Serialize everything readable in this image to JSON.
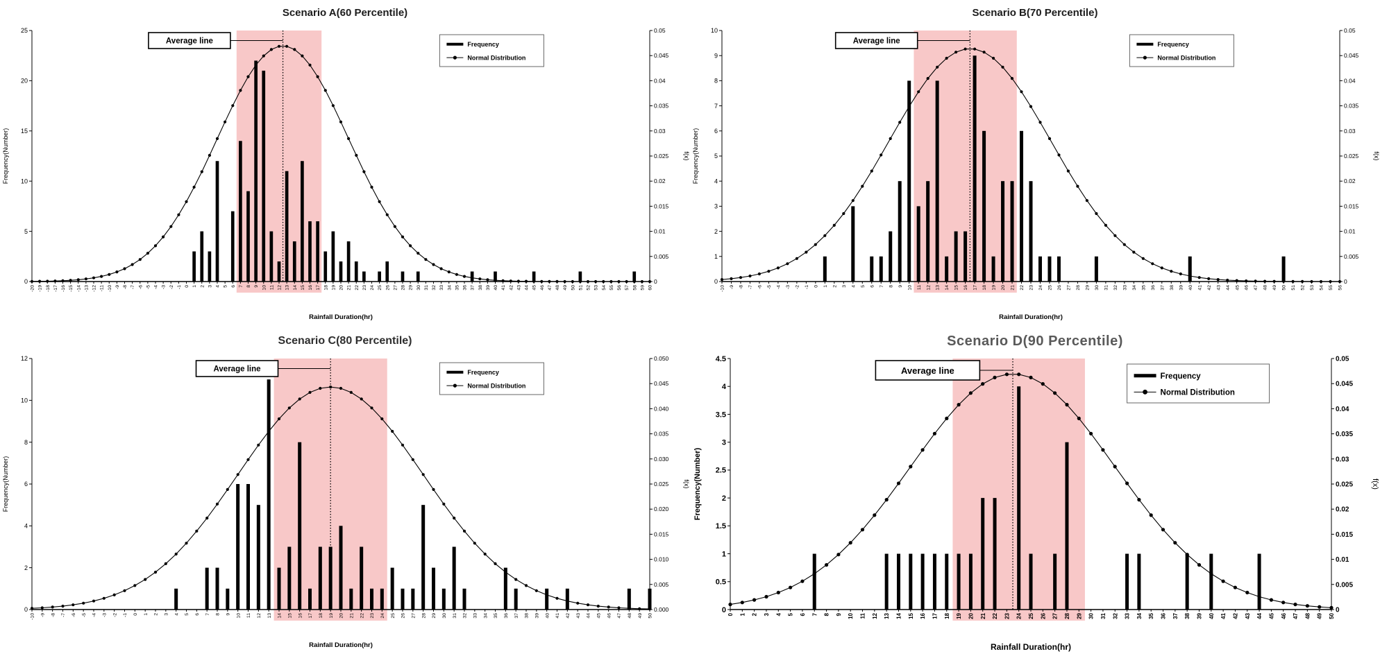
{
  "colors": {
    "background": "#ffffff",
    "band": "#f8c8c8",
    "bar": "#000000",
    "curve": "#000000",
    "legend_border": "#666666"
  },
  "chart_data": [
    {
      "type": "bar+line",
      "title": "Scenario A(60 Percentile)",
      "xlabel": "Rainfall Duration(hr)",
      "ylabel": "Frequency(Number)",
      "y2label": "f(x)",
      "annotation": "Average line",
      "x_range": [
        -20,
        60
      ],
      "y_range": [
        0,
        25
      ],
      "y_step": 5,
      "y2_range": [
        0,
        0.05
      ],
      "y2_step": 0.005,
      "y2_decimals": null,
      "average_band": [
        6.5,
        17.5
      ],
      "average_x": 12.5,
      "emphasis": false,
      "legend_position": "top-right",
      "series": [
        {
          "name": "Frequency",
          "type": "bar",
          "axis": "left",
          "points": [
            [
              1,
              3
            ],
            [
              2,
              5
            ],
            [
              3,
              3
            ],
            [
              4,
              12
            ],
            [
              6,
              7
            ],
            [
              7,
              14
            ],
            [
              8,
              9
            ],
            [
              9,
              22
            ],
            [
              10,
              21
            ],
            [
              11,
              5
            ],
            [
              12,
              2
            ],
            [
              13,
              11
            ],
            [
              14,
              4
            ],
            [
              15,
              12
            ],
            [
              16,
              6
            ],
            [
              17,
              6
            ],
            [
              18,
              3
            ],
            [
              19,
              5
            ],
            [
              20,
              2
            ],
            [
              21,
              4
            ],
            [
              22,
              2
            ],
            [
              23,
              1
            ],
            [
              25,
              1
            ],
            [
              26,
              2
            ],
            [
              28,
              1
            ],
            [
              30,
              1
            ],
            [
              37,
              1
            ],
            [
              40,
              1
            ],
            [
              45,
              1
            ],
            [
              51,
              1
            ],
            [
              58,
              1
            ]
          ]
        },
        {
          "name": "Normal Distribution",
          "type": "line",
          "axis": "right",
          "shape": "normal-pdf",
          "mean": 12.5,
          "std": 8.5
        }
      ]
    },
    {
      "type": "bar+line",
      "title": "Scenario B(70 Percentile)",
      "xlabel": "Rainfall Duration(hr)",
      "ylabel": "Frequency(Number)",
      "y2label": "f(x)",
      "annotation": "Average line",
      "x_range": [
        -10,
        56
      ],
      "y_range": [
        0,
        10
      ],
      "y_step": 1,
      "y2_range": [
        0,
        0.05
      ],
      "y2_step": 0.005,
      "y2_decimals": null,
      "average_band": [
        10.5,
        21.5
      ],
      "average_x": 16.5,
      "emphasis": false,
      "legend_position": "top-right",
      "series": [
        {
          "name": "Frequency",
          "type": "bar",
          "axis": "left",
          "points": [
            [
              1,
              1
            ],
            [
              4,
              3
            ],
            [
              6,
              1
            ],
            [
              7,
              1
            ],
            [
              8,
              2
            ],
            [
              9,
              4
            ],
            [
              10,
              8
            ],
            [
              11,
              3
            ],
            [
              12,
              4
            ],
            [
              13,
              8
            ],
            [
              14,
              1
            ],
            [
              15,
              2
            ],
            [
              16,
              2
            ],
            [
              17,
              9
            ],
            [
              18,
              6
            ],
            [
              19,
              1
            ],
            [
              20,
              4
            ],
            [
              21,
              4
            ],
            [
              22,
              6
            ],
            [
              23,
              4
            ],
            [
              24,
              1
            ],
            [
              25,
              1
            ],
            [
              26,
              1
            ],
            [
              30,
              1
            ],
            [
              40,
              1
            ],
            [
              50,
              1
            ]
          ]
        },
        {
          "name": "Normal Distribution",
          "type": "line",
          "axis": "right",
          "shape": "normal-pdf",
          "mean": 16.5,
          "std": 8.6
        }
      ]
    },
    {
      "type": "bar+line",
      "title": "Scenario C(80 Percentile)",
      "xlabel": "Rainfall Duration(hr)",
      "ylabel": "Frequency(Number)",
      "y2label": "f(x)",
      "annotation": "Average line",
      "x_range": [
        -10,
        50
      ],
      "y_range": [
        0,
        12
      ],
      "y_step": 2,
      "y2_range": [
        0,
        0.05
      ],
      "y2_step": 0.005,
      "y2_decimals": 3,
      "average_band": [
        13.5,
        24.5
      ],
      "average_x": 19,
      "emphasis": false,
      "legend_position": "top-right",
      "series": [
        {
          "name": "Frequency",
          "type": "bar",
          "axis": "left",
          "points": [
            [
              4,
              1
            ],
            [
              7,
              2
            ],
            [
              8,
              2
            ],
            [
              9,
              1
            ],
            [
              10,
              6
            ],
            [
              11,
              6
            ],
            [
              12,
              5
            ],
            [
              13,
              11
            ],
            [
              14,
              2
            ],
            [
              15,
              3
            ],
            [
              16,
              8
            ],
            [
              17,
              1
            ],
            [
              18,
              3
            ],
            [
              19,
              3
            ],
            [
              20,
              4
            ],
            [
              21,
              1
            ],
            [
              22,
              3
            ],
            [
              23,
              1
            ],
            [
              24,
              1
            ],
            [
              25,
              2
            ],
            [
              26,
              1
            ],
            [
              27,
              1
            ],
            [
              28,
              5
            ],
            [
              29,
              2
            ],
            [
              30,
              1
            ],
            [
              31,
              3
            ],
            [
              32,
              1
            ],
            [
              36,
              2
            ],
            [
              37,
              1
            ],
            [
              40,
              1
            ],
            [
              42,
              1
            ],
            [
              48,
              1
            ],
            [
              50,
              1
            ]
          ]
        },
        {
          "name": "Normal Distribution",
          "type": "line",
          "axis": "right",
          "shape": "normal-pdf",
          "mean": 19,
          "std": 9
        }
      ]
    },
    {
      "type": "bar+line",
      "title": "Scenario D(90 Percentile)",
      "xlabel": "Rainfall Duration(hr)",
      "ylabel": "Frequency(Number)",
      "y2label": "f(x)",
      "annotation": "Average line",
      "x_range": [
        0,
        50
      ],
      "y_range": [
        0,
        4.5
      ],
      "y_step": 0.5,
      "y2_range": [
        0,
        0.05
      ],
      "y2_step": 0.005,
      "y2_decimals": null,
      "average_band": [
        18.5,
        29.5
      ],
      "average_x": 23.5,
      "emphasis": true,
      "legend_position": "top-right",
      "series": [
        {
          "name": "Frequency",
          "type": "bar",
          "axis": "left",
          "points": [
            [
              7,
              1
            ],
            [
              13,
              1
            ],
            [
              14,
              1
            ],
            [
              15,
              1
            ],
            [
              16,
              1
            ],
            [
              17,
              1
            ],
            [
              18,
              1
            ],
            [
              19,
              1
            ],
            [
              20,
              1
            ],
            [
              21,
              2
            ],
            [
              22,
              2
            ],
            [
              24,
              4
            ],
            [
              25,
              1
            ],
            [
              27,
              1
            ],
            [
              28,
              3
            ],
            [
              33,
              1
            ],
            [
              34,
              1
            ],
            [
              38,
              1
            ],
            [
              40,
              1
            ],
            [
              44,
              1
            ]
          ]
        },
        {
          "name": "Normal Distribution",
          "type": "line",
          "axis": "right",
          "shape": "normal-pdf",
          "mean": 23.5,
          "std": 8.5
        }
      ]
    }
  ]
}
